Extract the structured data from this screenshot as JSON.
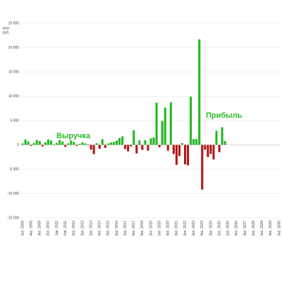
{
  "chart_data": {
    "type": "bar",
    "y_label_lines": [
      "млн",
      "руб."
    ],
    "annotations": [
      {
        "text": "Выручка",
        "color": "#2db82d"
      },
      {
        "text": "Прибыль",
        "color": "#2db82d"
      }
    ],
    "categories": [
      "1кв. 2008",
      null,
      null,
      "4кв. 2008",
      null,
      null,
      "3кв. 2009",
      null,
      null,
      "2кв. 2010",
      null,
      null,
      "1кв. 2011",
      null,
      null,
      "4кв. 2011",
      null,
      null,
      "3кв. 2012",
      null,
      null,
      "2кв. 2013",
      null,
      null,
      "1кв. 2014",
      null,
      null,
      "4кв. 2014",
      null,
      null,
      "3кв. 2015",
      null,
      null,
      "2кв. 2016",
      null,
      null,
      "1кв. 2017",
      null,
      null,
      "4кв. 2017",
      null,
      null,
      "3кв. 2018",
      null,
      null,
      "2кв. 2019",
      null,
      null,
      "1кв. 2020",
      null,
      null,
      "4кв. 2020",
      null,
      null,
      "3кв. 2021",
      null,
      null,
      "2кв. 2022",
      null,
      null,
      "1кв. 2023",
      null,
      null,
      "4кв. 2023",
      null,
      null,
      "3кв. 2024",
      null,
      null,
      "2кв. 2025",
      null,
      null,
      "1кв. 2026",
      null,
      null,
      "4кв. 2026",
      null,
      null,
      "3кв. 2027",
      null,
      null,
      "2кв. 2028",
      null,
      null,
      "1кв. 2029",
      null,
      null,
      "4кв. 2029",
      null,
      null,
      "3кв. 2030"
    ],
    "series": [
      {
        "name": "Прибыль",
        "positive_color": "#22b822",
        "negative_color": "#b01818",
        "values": [
          300,
          1100,
          700,
          -200,
          400,
          1000,
          800,
          -300,
          500,
          1100,
          900,
          -100,
          400,
          1000,
          700,
          -400,
          300,
          900,
          600,
          -200,
          200,
          500,
          300,
          -100,
          -1000,
          -1900,
          337,
          -800,
          1155,
          -617,
          300,
          500,
          600,
          900,
          1400,
          1741,
          -862,
          -1330,
          -300,
          3008,
          -1772,
          913,
          -1029,
          965,
          -1189,
          1337,
          1507,
          8681,
          -503,
          4933,
          7660,
          -1180,
          8725,
          -1880,
          -4100,
          -2300,
          362,
          -4000,
          -4200,
          9911,
          1200,
          1178,
          21689,
          -9187,
          -1000,
          -2500,
          -1851,
          -3000,
          2899,
          -1500,
          3619,
          808,
          null,
          null,
          null,
          null,
          null,
          null,
          null,
          null,
          null,
          null,
          null,
          null,
          null,
          null,
          null,
          null,
          null,
          null,
          null
        ]
      }
    ],
    "ylim": [
      -15000,
      25000
    ],
    "yticks": [
      {
        "value": -15000,
        "label": "-15 000"
      },
      {
        "value": -10000,
        "label": "-10 000"
      },
      {
        "value": -5000,
        "label": "-5 000"
      },
      0,
      {
        "value": 5000,
        "label": "5 000"
      },
      {
        "value": 10000,
        "label": "10 000"
      },
      {
        "value": 15000,
        "label": "15 000"
      },
      {
        "value": 20000,
        "label": "20 000"
      },
      {
        "value": 25000,
        "label": "25 000"
      }
    ],
    "grid": true
  }
}
